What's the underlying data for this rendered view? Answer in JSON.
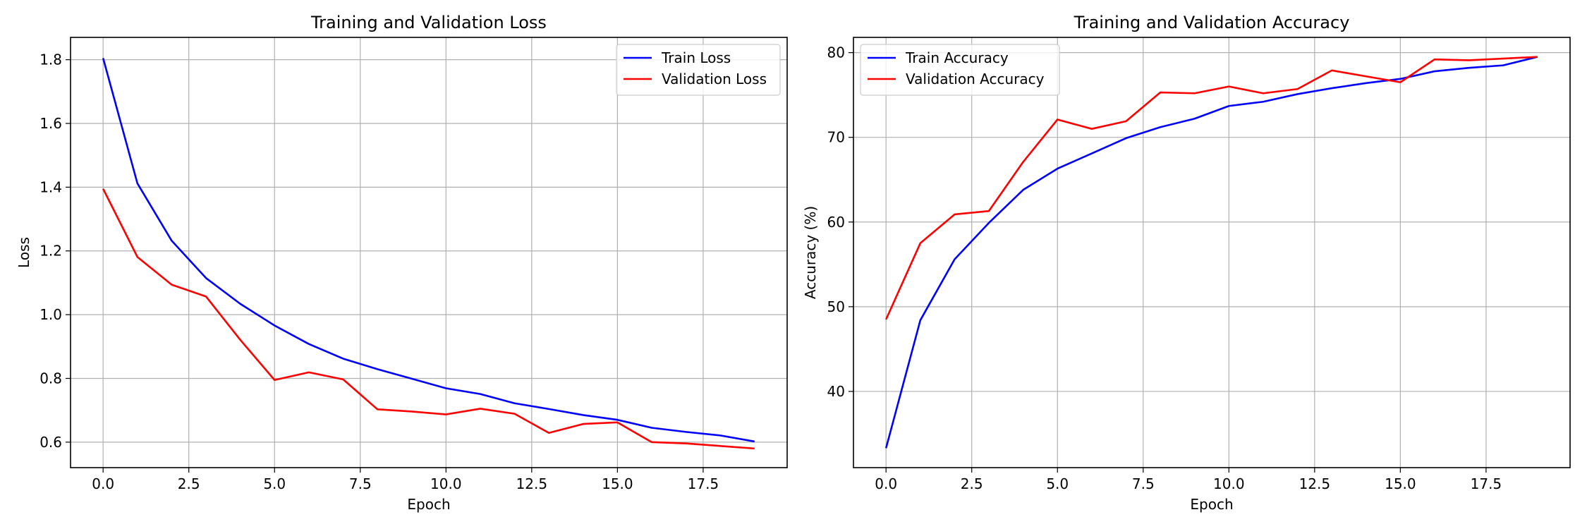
{
  "chart_data": [
    {
      "type": "line",
      "title": "Training and Validation Loss",
      "xlabel": "Epoch",
      "ylabel": "Loss",
      "xlim": [
        -0.95,
        19.95
      ],
      "ylim": [
        0.52,
        1.87
      ],
      "xticks": [
        0.0,
        2.5,
        5.0,
        7.5,
        10.0,
        12.5,
        15.0,
        17.5
      ],
      "xtick_labels": [
        "0.0",
        "2.5",
        "5.0",
        "7.5",
        "10.0",
        "12.5",
        "15.0",
        "17.5"
      ],
      "yticks": [
        0.6,
        0.8,
        1.0,
        1.2,
        1.4,
        1.6,
        1.8
      ],
      "ytick_labels": [
        "0.6",
        "0.8",
        "1.0",
        "1.2",
        "1.4",
        "1.6",
        "1.8"
      ],
      "grid": true,
      "legend_position": "top-right",
      "x": [
        0,
        1,
        2,
        3,
        4,
        5,
        6,
        7,
        8,
        9,
        10,
        11,
        12,
        13,
        14,
        15,
        16,
        17,
        18,
        19
      ],
      "series": [
        {
          "name": "Train Loss",
          "color": "#0000ff",
          "values": [
            1.805,
            1.412,
            1.232,
            1.115,
            1.034,
            0.966,
            0.908,
            0.862,
            0.829,
            0.799,
            0.769,
            0.751,
            0.722,
            0.704,
            0.685,
            0.67,
            0.645,
            0.632,
            0.621,
            0.602
          ]
        },
        {
          "name": "Validation Loss",
          "color": "#ff0000",
          "values": [
            1.395,
            1.181,
            1.094,
            1.057,
            0.921,
            0.795,
            0.819,
            0.797,
            0.703,
            0.696,
            0.687,
            0.705,
            0.689,
            0.629,
            0.657,
            0.662,
            0.6,
            0.596,
            0.588,
            0.58
          ]
        }
      ]
    },
    {
      "type": "line",
      "title": "Training and Validation Accuracy",
      "xlabel": "Epoch",
      "ylabel": "Accuracy (%)",
      "xlim": [
        -0.95,
        19.95
      ],
      "ylim": [
        31.0,
        81.8
      ],
      "xticks": [
        0.0,
        2.5,
        5.0,
        7.5,
        10.0,
        12.5,
        15.0,
        17.5
      ],
      "xtick_labels": [
        "0.0",
        "2.5",
        "5.0",
        "7.5",
        "10.0",
        "12.5",
        "15.0",
        "17.5"
      ],
      "yticks": [
        40,
        50,
        60,
        70,
        80
      ],
      "ytick_labels": [
        "40",
        "50",
        "60",
        "70",
        "80"
      ],
      "grid": true,
      "legend_position": "top-left",
      "x": [
        0,
        1,
        2,
        3,
        4,
        5,
        6,
        7,
        8,
        9,
        10,
        11,
        12,
        13,
        14,
        15,
        16,
        17,
        18,
        19
      ],
      "series": [
        {
          "name": "Train Accuracy",
          "color": "#0000ff",
          "values": [
            33.3,
            48.4,
            55.6,
            59.9,
            63.8,
            66.3,
            68.1,
            69.9,
            71.2,
            72.2,
            73.7,
            74.2,
            75.1,
            75.8,
            76.4,
            76.9,
            77.8,
            78.2,
            78.5,
            79.5
          ]
        },
        {
          "name": "Validation Accuracy",
          "color": "#ff0000",
          "values": [
            48.5,
            57.5,
            60.9,
            61.3,
            67.1,
            72.1,
            71.0,
            71.9,
            75.3,
            75.2,
            76.0,
            75.2,
            75.7,
            77.9,
            77.2,
            76.5,
            79.2,
            79.1,
            79.3,
            79.5
          ]
        }
      ]
    }
  ]
}
